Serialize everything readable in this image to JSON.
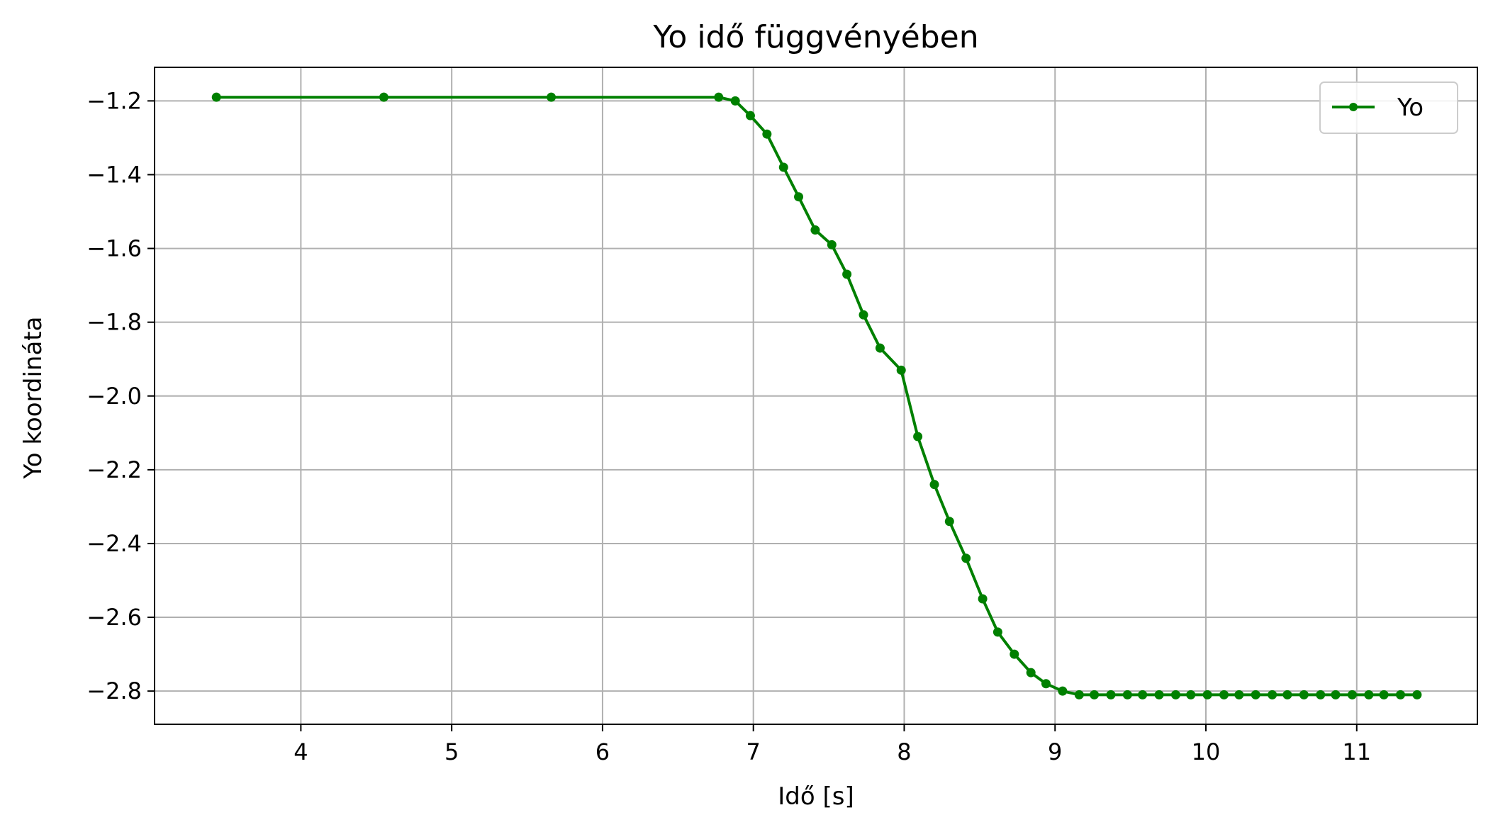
{
  "chart_data": {
    "type": "line",
    "title": "Yo idő függvényében",
    "xlabel": "Idő [s]",
    "ylabel": "Yo koordináta",
    "xlim": [
      3.03,
      11.8
    ],
    "ylim": [
      -2.89,
      -1.109
    ],
    "xticks": [
      4,
      5,
      6,
      7,
      8,
      9,
      10,
      11
    ],
    "xtick_labels": [
      "4",
      "5",
      "6",
      "7",
      "8",
      "9",
      "10",
      "11"
    ],
    "yticks": [
      -1.2,
      -1.4,
      -1.6,
      -1.8,
      -2.0,
      -2.2,
      -2.4,
      -2.6,
      -2.8
    ],
    "ytick_labels": [
      "−1.2",
      "−1.4",
      "−1.6",
      "−1.8",
      "−2.0",
      "−2.2",
      "−2.4",
      "−2.6",
      "−2.8"
    ],
    "grid": true,
    "legend_position": "top-right",
    "series": [
      {
        "name": "Yo",
        "color": "#008000",
        "marker": "circle",
        "x": [
          3.44,
          4.55,
          5.66,
          6.77,
          6.88,
          6.98,
          7.09,
          7.2,
          7.3,
          7.41,
          7.52,
          7.62,
          7.73,
          7.84,
          7.98,
          8.09,
          8.2,
          8.3,
          8.41,
          8.52,
          8.62,
          8.73,
          8.84,
          8.94,
          9.05,
          9.16,
          9.26,
          9.37,
          9.48,
          9.58,
          9.69,
          9.8,
          9.9,
          10.01,
          10.12,
          10.22,
          10.33,
          10.44,
          10.54,
          10.65,
          10.76,
          10.86,
          10.97,
          11.08,
          11.18,
          11.29,
          11.4
        ],
        "y": [
          -1.19,
          -1.19,
          -1.19,
          -1.19,
          -1.2,
          -1.24,
          -1.29,
          -1.38,
          -1.46,
          -1.55,
          -1.59,
          -1.67,
          -1.78,
          -1.87,
          -1.93,
          -2.11,
          -2.24,
          -2.34,
          -2.44,
          -2.55,
          -2.64,
          -2.7,
          -2.75,
          -2.78,
          -2.8,
          -2.81,
          -2.81,
          -2.81,
          -2.81,
          -2.81,
          -2.81,
          -2.81,
          -2.81,
          -2.81,
          -2.81,
          -2.81,
          -2.81,
          -2.81,
          -2.81,
          -2.81,
          -2.81,
          -2.81,
          -2.81,
          -2.81,
          -2.81,
          -2.81,
          -2.81
        ]
      }
    ]
  }
}
